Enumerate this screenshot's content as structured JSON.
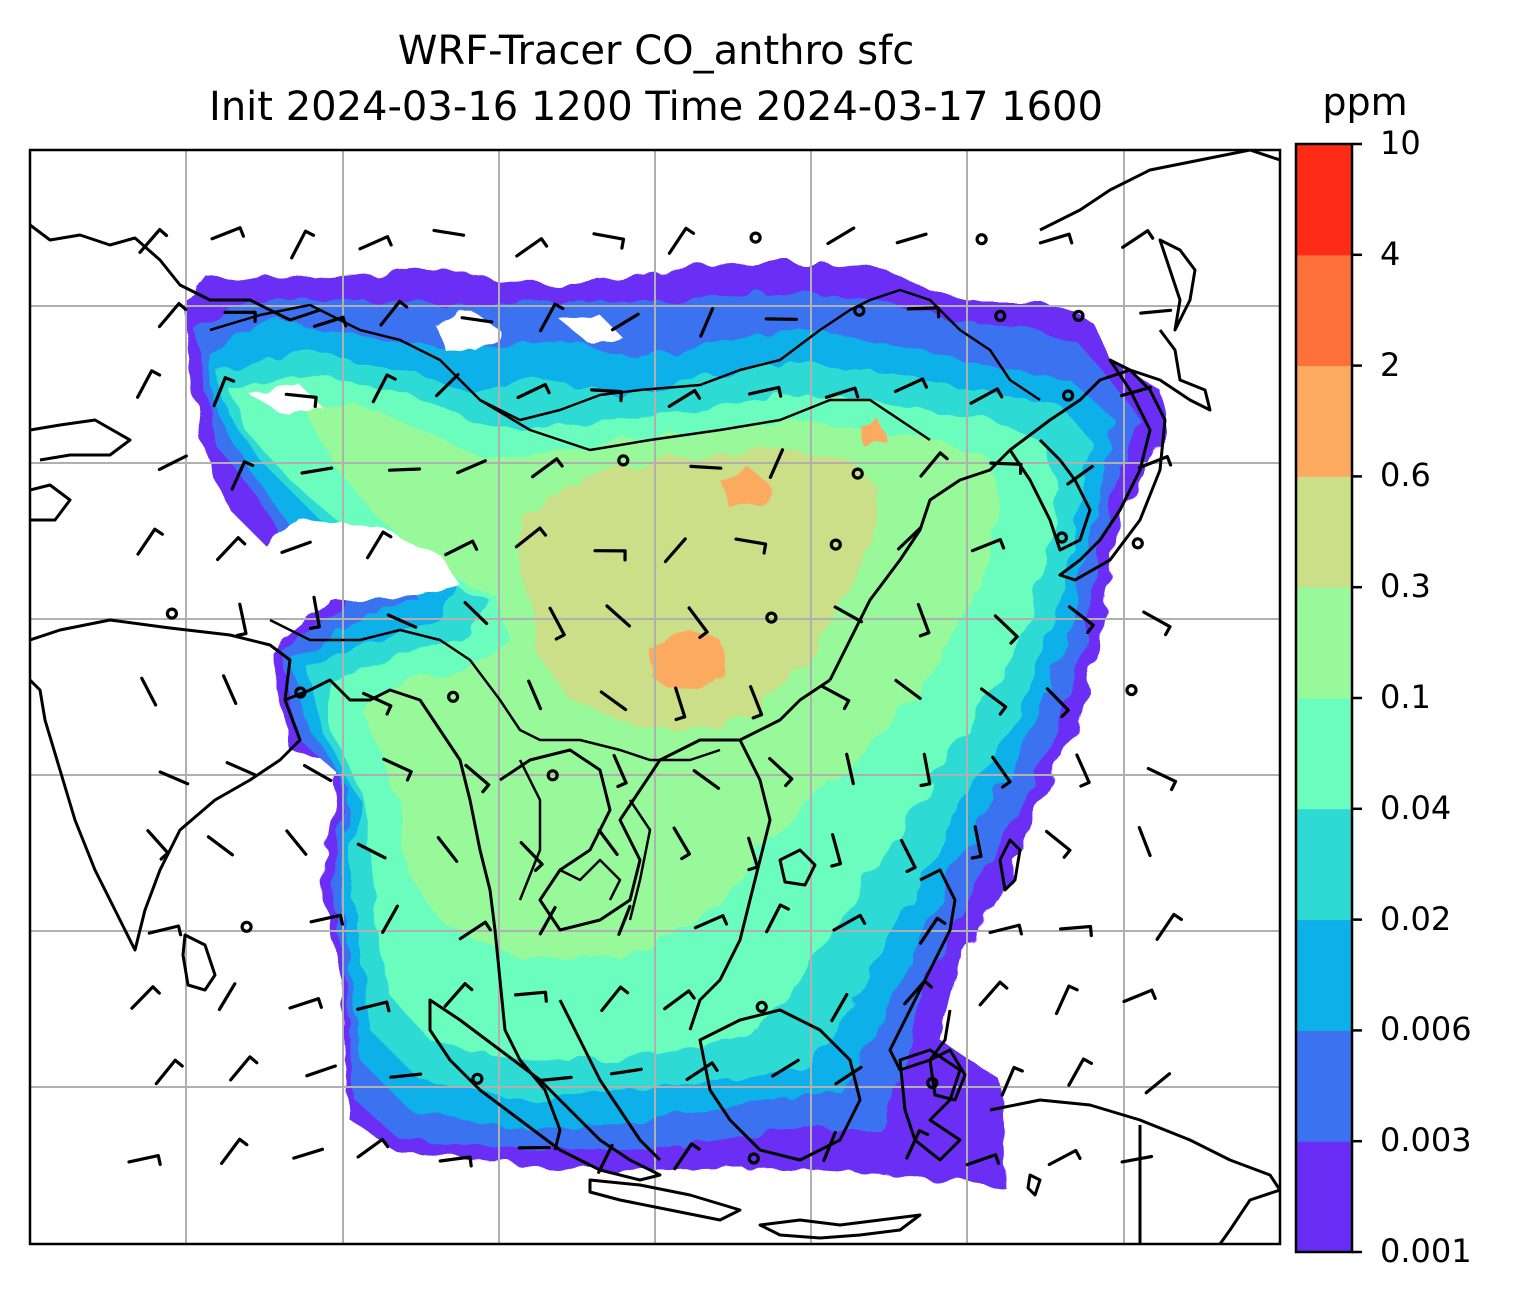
{
  "title": {
    "line1": "WRF-Tracer CO_anthro sfc",
    "line2": "Init 2024-03-16 1200 Time 2024-03-17 1600"
  },
  "colorbar": {
    "unit": "ppm",
    "ticks": [
      "0.001",
      "0.003",
      "0.006",
      "0.02",
      "0.04",
      "0.1",
      "0.3",
      "0.6",
      "2",
      "4",
      "10"
    ],
    "colors": [
      "#6a2df5",
      "#3a72f0",
      "#0db0e9",
      "#2fdad4",
      "#6bfdbe",
      "#98f99a",
      "#cadf88",
      "#fbaa60",
      "#ff703a",
      "#fe2c17"
    ]
  },
  "map": {
    "gridlines": true,
    "features": [
      "coastlines",
      "country-borders",
      "wind-barbs",
      "calm-circles"
    ]
  },
  "chart_data": {
    "type": "heatmap",
    "title": "WRF-Tracer CO_anthro sfc",
    "subtitle": "Init 2024-03-16 1200 Time 2024-03-17 1600",
    "colorbar_label": "ppm",
    "levels": [
      0.001,
      0.003,
      0.006,
      0.02,
      0.04,
      0.1,
      0.3,
      0.6,
      2,
      4,
      10
    ],
    "grid": true
  }
}
